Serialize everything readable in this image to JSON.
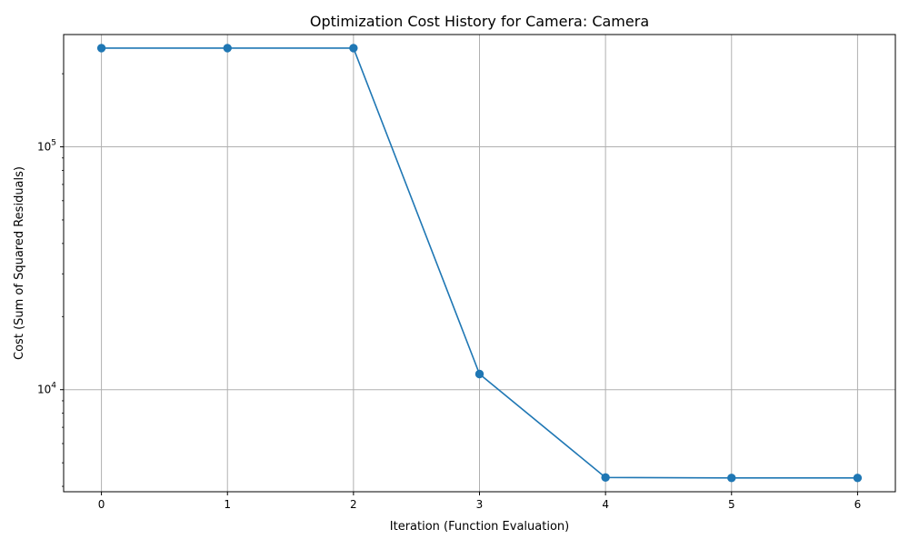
{
  "chart_data": {
    "type": "line",
    "title": "Optimization Cost History for Camera: Camera",
    "xlabel": "Iteration (Function Evaluation)",
    "ylabel": "Cost (Sum of Squared Residuals)",
    "x_scale": "linear",
    "y_scale": "log",
    "xlim": [
      -0.3,
      6.3
    ],
    "ylim": [
      3800,
      290000
    ],
    "x_ticks": [
      0,
      1,
      2,
      3,
      4,
      5,
      6
    ],
    "x_tick_labels": [
      "0",
      "1",
      "2",
      "3",
      "4",
      "5",
      "6"
    ],
    "y_ticks": [
      {
        "value": 10000,
        "base": "10",
        "exp": "4"
      },
      {
        "value": 100000,
        "base": "10",
        "exp": "5"
      }
    ],
    "grid": true,
    "legend": false,
    "series": [
      {
        "color": "#1f77b4",
        "marker": "circle",
        "x": [
          0,
          1,
          2,
          3,
          4,
          5,
          6
        ],
        "y": [
          255000,
          255000,
          255000,
          11600,
          4350,
          4330,
          4330
        ]
      }
    ]
  }
}
